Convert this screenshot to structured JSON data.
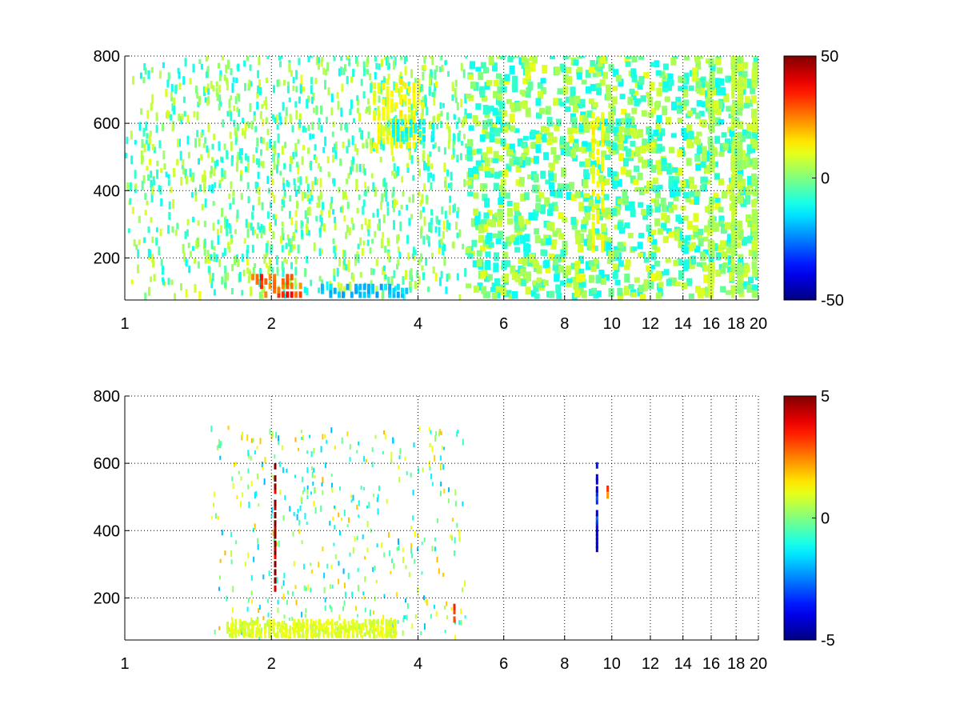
{
  "chart_data": [
    {
      "type": "heatmap",
      "title": "",
      "xlabel": "",
      "ylabel": "",
      "x_scale": "log",
      "xlim": [
        1,
        20
      ],
      "ylim": [
        75,
        800
      ],
      "x_ticks": [
        1,
        2,
        4,
        6,
        8,
        10,
        12,
        14,
        16,
        18,
        20
      ],
      "x_tick_labels": [
        "1",
        "2",
        "4",
        "6",
        "8",
        "10",
        "12",
        "14",
        "16",
        "18",
        "20"
      ],
      "y_ticks": [
        200,
        400,
        600,
        800
      ],
      "y_tick_labels": [
        "200",
        "400",
        "600",
        "800"
      ],
      "grid": true,
      "colormap": "jet",
      "clim": [
        -50,
        50
      ],
      "colorbar_ticks": [
        50,
        0,
        -50
      ],
      "colorbar_tick_labels": [
        "50",
        "0",
        "-50"
      ],
      "density": "dense scattered values across all x; strongest positive near x=2 at low y; negative cluster x 2.5–4 at low y; yellow streaks near x 9–9.5",
      "features": [
        {
          "x": [
            1.8,
            2.3
          ],
          "y": [
            75,
            140
          ],
          "value": 30
        },
        {
          "x": [
            2.5,
            3.8
          ],
          "y": [
            75,
            110
          ],
          "value": -18
        },
        {
          "x": [
            3.2,
            4.1
          ],
          "y": [
            520,
            720
          ],
          "value": 12
        },
        {
          "x": [
            3.5,
            4.3
          ],
          "y": [
            540,
            600
          ],
          "value": -12
        },
        {
          "x": [
            9.0,
            9.6
          ],
          "y": [
            210,
            620
          ],
          "value": 12
        },
        {
          "x": [
            17.4,
            17.8
          ],
          "y": [
            75,
            800
          ],
          "value": 6
        }
      ]
    },
    {
      "type": "heatmap",
      "title": "",
      "xlabel": "",
      "ylabel": "",
      "x_scale": "log",
      "xlim": [
        1,
        20
      ],
      "ylim": [
        75,
        800
      ],
      "x_ticks": [
        1,
        2,
        4,
        6,
        8,
        10,
        12,
        14,
        16,
        18,
        20
      ],
      "x_tick_labels": [
        "1",
        "2",
        "4",
        "6",
        "8",
        "10",
        "12",
        "14",
        "16",
        "18",
        "20"
      ],
      "y_ticks": [
        200,
        400,
        600,
        800
      ],
      "y_tick_labels": [
        "200",
        "400",
        "600",
        "800"
      ],
      "grid": true,
      "colormap": "jet",
      "clim": [
        -5,
        5
      ],
      "colorbar_ticks": [
        5,
        0,
        -5
      ],
      "colorbar_tick_labels": [
        "5",
        "0",
        "-5"
      ],
      "density": "sparse: column near x=2, cluster x 3.5–4.5 at y 550–650, low band x 1.5–3.5 at y<130, column near x 9–9.5",
      "features": [
        {
          "x": [
            2.0,
            2.05
          ],
          "y": [
            200,
            600
          ],
          "value": 5
        },
        {
          "x": [
            1.6,
            3.6
          ],
          "y": [
            75,
            125
          ],
          "value": 1
        },
        {
          "x": [
            9.2,
            9.35
          ],
          "y": [
            330,
            590
          ],
          "value": -3.5
        },
        {
          "x": [
            9.7,
            9.8
          ],
          "y": [
            490,
            520
          ],
          "value": 3
        },
        {
          "x": [
            4.7,
            4.75
          ],
          "y": [
            120,
            170
          ],
          "value": 3
        }
      ]
    }
  ]
}
